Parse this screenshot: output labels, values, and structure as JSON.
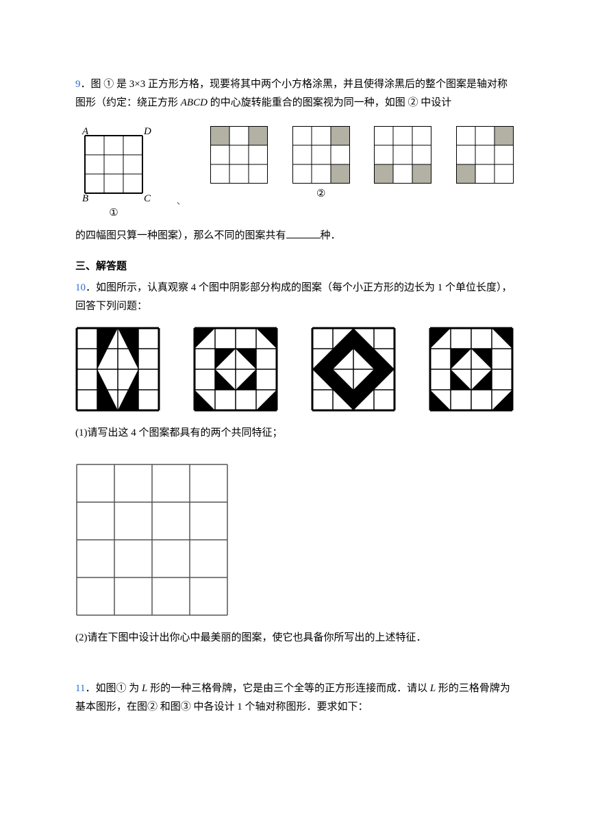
{
  "q9": {
    "num": "9",
    "text_a": "．图 ① 是 3×3 正方形方格，现要将其中两个小方格涂黑，并且使得涂黑后的整个图案是轴对称图形（约定：绕正方形 ",
    "abcd": "ABCD",
    "text_b": " 的中心旋转能重合的图案视为同一种，如图 ② 中设计",
    "text_c": "的四幅图只算一种图案），那么不同的图案共有",
    "text_d": "种．",
    "labels": {
      "A": "A",
      "B": "B",
      "C": "C",
      "D": "D",
      "circ1": "①",
      "circ2": "②"
    },
    "grids": {
      "size": 3,
      "cell": 28,
      "g2": [
        [
          0,
          0
        ],
        [
          2,
          0
        ]
      ],
      "g3": [
        [
          2,
          0
        ],
        [
          2,
          2
        ]
      ],
      "g4": [
        [
          0,
          2
        ],
        [
          2,
          2
        ]
      ],
      "g5": [
        [
          2,
          0
        ],
        [
          0,
          2
        ]
      ],
      "fill": "#b2b1a4",
      "stroke": "#000"
    }
  },
  "sec3": "三、解答题",
  "q10": {
    "num": "10",
    "text_a": "．如图所示，认真观察 4 个图中阴影部分构成的图案（每个小正方形的边长为 1 个单位长度），回答下列问题：",
    "sub1": "(1)请写出这 4 个图案都具有的两个共同特征；",
    "sub2": "(2)请在下图中设计出你心中最美丽的图案，使它也具备你所写出的上述特征．",
    "grid": {
      "size": 4,
      "cell": 30,
      "stroke": "#000",
      "fill": "#000"
    },
    "emptygrid": {
      "size": 4,
      "cell": 55,
      "stroke": "#555"
    }
  },
  "q11": {
    "num": "11",
    "L": "L",
    "text_a": "．如图① 为 ",
    "text_b": " 形的一种三格骨牌，它是由三个全等的正方形连接而成．请以 ",
    "text_c": " 形的三格骨牌为基本图形，在图② 和图③ 中各设计 1 个轴对称图形．要求如下："
  },
  "colors": {
    "link": "#2a6bd4"
  }
}
